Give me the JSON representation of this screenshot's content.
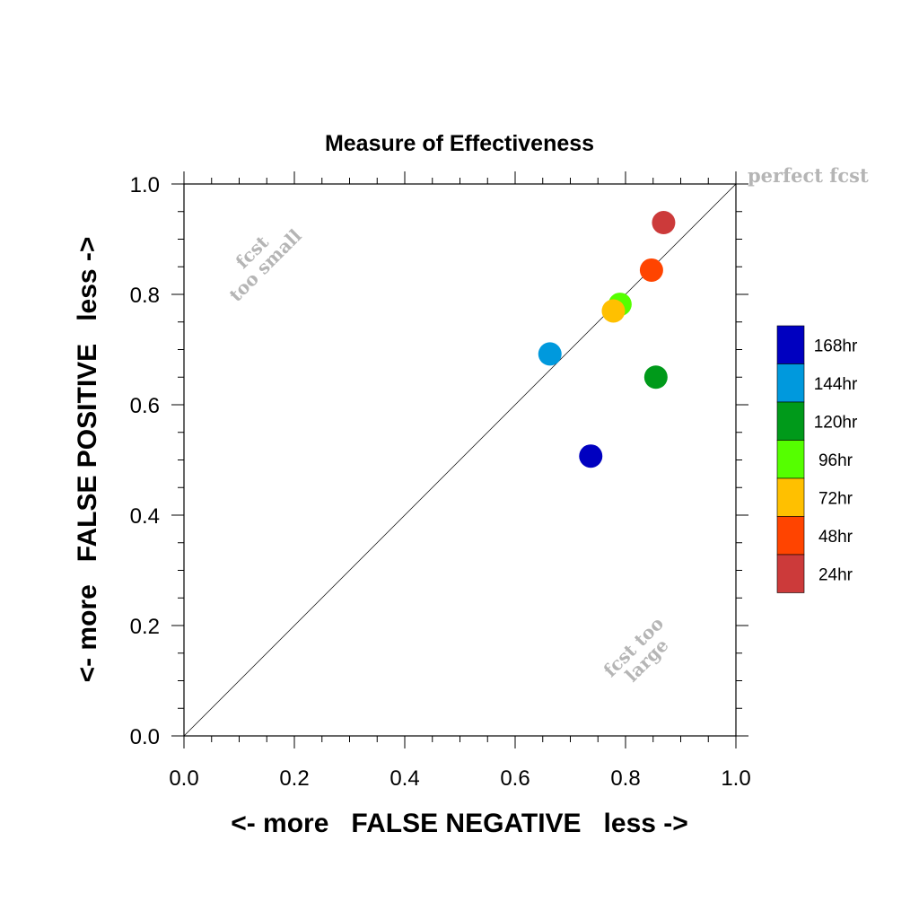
{
  "chart_data": {
    "type": "scatter",
    "title": "Measure of Effectiveness",
    "xlabel": "<- more   FALSE NEGATIVE   less ->",
    "ylabel": "<- more   FALSE POSITIVE   less ->",
    "xlim": [
      0.0,
      1.0
    ],
    "ylim": [
      0.0,
      1.0
    ],
    "x_ticks": [
      "0.0",
      "0.2",
      "0.4",
      "0.6",
      "0.8",
      "1.0"
    ],
    "y_ticks": [
      "0.0",
      "0.2",
      "0.4",
      "0.6",
      "0.8",
      "1.0"
    ],
    "grid": false,
    "reference_line": "diagonal",
    "annotations": {
      "perfect": "perfect fcst",
      "too_small_1": "fcst",
      "too_small_2": "too small",
      "too_large_1": "fcst too",
      "too_large_2": "large"
    },
    "legend_position": "right",
    "points": [
      {
        "name": "168hr",
        "x": 0.737,
        "y": 0.507,
        "color": "#0000c0"
      },
      {
        "name": "144hr",
        "x": 0.663,
        "y": 0.692,
        "color": "#0099dd"
      },
      {
        "name": "120hr",
        "x": 0.855,
        "y": 0.65,
        "color": "#009a1a"
      },
      {
        "name": "96hr",
        "x": 0.79,
        "y": 0.782,
        "color": "#55ff00"
      },
      {
        "name": "72hr",
        "x": 0.778,
        "y": 0.77,
        "color": "#ffc000"
      },
      {
        "name": "48hr",
        "x": 0.847,
        "y": 0.844,
        "color": "#ff4400"
      },
      {
        "name": "24hr",
        "x": 0.869,
        "y": 0.93,
        "color": "#cc3a3a"
      }
    ]
  }
}
